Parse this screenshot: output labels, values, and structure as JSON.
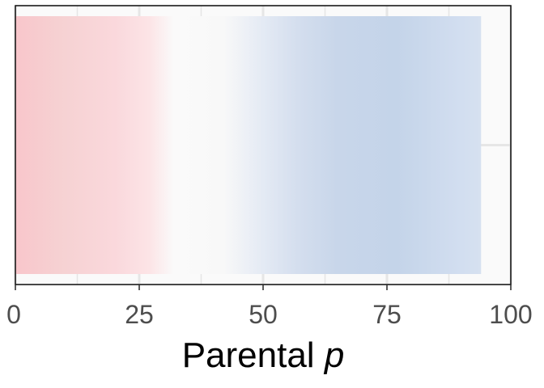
{
  "chart_data": {
    "type": "heatmap",
    "title": "",
    "xlabel_main": "Parental",
    "xlabel_var": "p",
    "ylabel": "",
    "xlim": [
      0,
      100
    ],
    "x_ticks": [
      0,
      25,
      50,
      75,
      100
    ],
    "x_tick_labels": [
      "0",
      "25",
      "50",
      "75",
      "100"
    ],
    "grid": true,
    "legend": "none",
    "data_extent": [
      0,
      94
    ],
    "colors": {
      "low": "#f8c6cb",
      "mid": "#fafafa",
      "high": "#c4d4e9",
      "panel_background": "#fafafa",
      "grid": "#e6e6e6",
      "border": "#1a1a1a"
    },
    "gradient_stops": [
      {
        "x": 0,
        "color": "#f8c6cb"
      },
      {
        "x": 10,
        "color": "#f6d2d3"
      },
      {
        "x": 20,
        "color": "#fad8dc"
      },
      {
        "x": 27,
        "color": "#fce4e6"
      },
      {
        "x": 32,
        "color": "#fafafa"
      },
      {
        "x": 42,
        "color": "#f8f8f8"
      },
      {
        "x": 50,
        "color": "#e4eaf4"
      },
      {
        "x": 57,
        "color": "#d4deee"
      },
      {
        "x": 65,
        "color": "#c8d6ea"
      },
      {
        "x": 77,
        "color": "#c4d4e9"
      },
      {
        "x": 90,
        "color": "#d2def0"
      },
      {
        "x": 94,
        "color": "#d6e1f0"
      }
    ]
  }
}
